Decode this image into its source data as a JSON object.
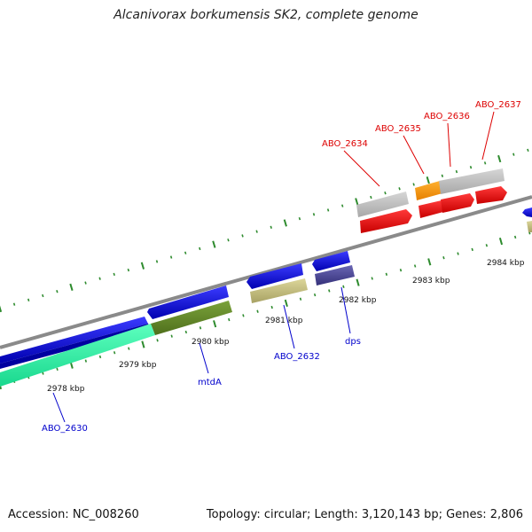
{
  "title": "Alcanivorax borkumensis SK2, complete genome",
  "footer": {
    "accession": "Accession: NC_008260",
    "summary": "Topology: circular; Length: 3,120,143 bp; Genes: 2,806"
  },
  "colors": {
    "backbone": "#8a8a8a",
    "tick": "#2e8b2e",
    "label_blue": "#0000cc",
    "label_red": "#dd0000"
  },
  "scale_labels": [
    "2978 kbp",
    "2979 kbp",
    "2980 kbp",
    "2981 kbp",
    "2982 kbp",
    "2983 kbp",
    "2984 kbp"
  ],
  "gene_labels": [
    {
      "text": "ABO_2630",
      "color": "blue"
    },
    {
      "text": "mtdA",
      "color": "blue"
    },
    {
      "text": "ABO_2632",
      "color": "blue"
    },
    {
      "text": "dps",
      "color": "blue"
    },
    {
      "text": "ABO_2634",
      "color": "red"
    },
    {
      "text": "ABO_2635",
      "color": "red"
    },
    {
      "text": "ABO_2636",
      "color": "red"
    },
    {
      "text": "ABO_2637",
      "color": "red"
    }
  ]
}
